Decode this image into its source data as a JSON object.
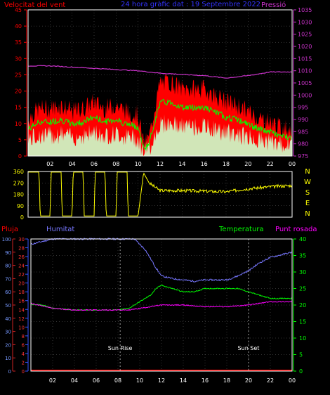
{
  "header": {
    "left_title": "Velocitat del vent",
    "center_title": "24 hora gràfic dat : 19 Septembre 2022",
    "right_title": "Pressió"
  },
  "lower_labels": {
    "rain": "Pluja",
    "humidity": "Humitat",
    "temperature": "Temperatura",
    "dewpoint": "Punt rosada",
    "sunrise": "Sun Rise",
    "sunset": "Sun Set"
  },
  "colors": {
    "gust": "#ff0000",
    "avg_wind": "#00ff00",
    "wind_low": "#ccffcc",
    "pressure": "#cc33cc",
    "direction": "#ffff00",
    "humidity": "#7777ff",
    "temperature": "#00ff00",
    "dewpoint": "#ff00ff",
    "rain": "#ff0000",
    "axis_rain": "#3355ff",
    "axis_hum": "#cc2222",
    "axis_temp": "#00ff00",
    "frame": "#ffffff",
    "grid": "#666666"
  },
  "chart_data": [
    {
      "type": "line",
      "x_ticks": [
        "02",
        "04",
        "06",
        "08",
        "10",
        "12",
        "14",
        "16",
        "18",
        "20",
        "22",
        "00"
      ],
      "y_left_ticks": [
        "0",
        "5",
        "10",
        "15",
        "20",
        "25",
        "30",
        "35",
        "40",
        "45"
      ],
      "y_right_ticks": [
        "975",
        "980",
        "985",
        "990",
        "995",
        "1000",
        "1005",
        "1010",
        "1015",
        "1020",
        "1025",
        "1030",
        "1035"
      ],
      "ylim_left": [
        0,
        45
      ],
      "ylim_right": [
        975,
        1035
      ],
      "series": [
        {
          "name": "Velocitat del vent",
          "x": [
            0,
            1,
            2,
            3,
            4,
            5,
            6,
            7,
            8,
            9,
            10,
            10.5,
            11,
            11.5,
            12,
            13,
            14,
            15,
            16,
            17,
            18,
            19,
            20,
            21,
            22,
            23,
            24
          ],
          "values": [
            11,
            14,
            14,
            15,
            13,
            14,
            16,
            14,
            15,
            13,
            12,
            3,
            5,
            14,
            22,
            22,
            20,
            20,
            20,
            18,
            16,
            15,
            13,
            11,
            10,
            8,
            8
          ]
        },
        {
          "name": "Pressió",
          "x": [
            0,
            2,
            4,
            6,
            8,
            10,
            12,
            14,
            16,
            18,
            20,
            22,
            24
          ],
          "values": [
            1012,
            1012,
            1011.5,
            1011,
            1010.5,
            1010,
            1009,
            1008.5,
            1008,
            1007,
            1008,
            1009.5,
            1009.5
          ]
        }
      ]
    },
    {
      "type": "line",
      "x_ticks": [
        "02",
        "04",
        "06",
        "08",
        "10",
        "12",
        "14",
        "16",
        "18",
        "20",
        "22",
        "00"
      ],
      "y_left_ticks": [
        "0",
        "90",
        "180",
        "270",
        "360"
      ],
      "y_right_labels": [
        "N",
        "W",
        "S",
        "E",
        "N"
      ],
      "ylim": [
        0,
        360
      ],
      "series": [
        {
          "name": "",
          "x": [
            0,
            1,
            1.1,
            2,
            2.1,
            3,
            3.1,
            4,
            4.1,
            5,
            5.1,
            6,
            6.1,
            7,
            7.1,
            8,
            8.1,
            9,
            9.1,
            10,
            10.5,
            11,
            12,
            14,
            16,
            18,
            20,
            22,
            24
          ],
          "values": [
            355,
            355,
            10,
            10,
            355,
            355,
            10,
            10,
            355,
            355,
            10,
            10,
            355,
            355,
            10,
            10,
            355,
            355,
            10,
            10,
            350,
            270,
            210,
            210,
            205,
            200,
            225,
            240,
            250
          ]
        }
      ]
    },
    {
      "type": "line",
      "x_ticks": [
        "02",
        "04",
        "06",
        "08",
        "10",
        "12",
        "14",
        "16",
        "18",
        "20",
        "22",
        "00"
      ],
      "y_hum_ticks": [
        "0",
        "10",
        "20",
        "30",
        "40",
        "50",
        "60",
        "70",
        "80",
        "90",
        "100"
      ],
      "y_rain_ticks": [
        "0",
        "2",
        "4",
        "6",
        "8",
        "10",
        "12",
        "14",
        "16",
        "18",
        "20",
        "22",
        "24",
        "26",
        "28",
        "30"
      ],
      "y_temp_ticks": [
        "0",
        "5",
        "10",
        "15",
        "20",
        "25",
        "30",
        "35",
        "40"
      ],
      "ylim_temp": [
        0,
        40
      ],
      "series": [
        {
          "name": "Humitat",
          "x": [
            0,
            1,
            2,
            4,
            6,
            8,
            9.5,
            10.5,
            11,
            11.5,
            12,
            13,
            14,
            15,
            16,
            18,
            19,
            20,
            21,
            22,
            23,
            24
          ],
          "values": [
            96,
            98,
            100,
            100,
            100,
            100,
            100,
            92,
            85,
            78,
            72,
            70,
            69,
            68,
            69,
            69,
            72,
            76,
            82,
            86,
            88,
            90
          ]
        },
        {
          "name": "Temperatura",
          "x": [
            0,
            1,
            2,
            4,
            6,
            8,
            9,
            10,
            11,
            11.5,
            12,
            13,
            14,
            15,
            16,
            17,
            18,
            19,
            20,
            21,
            22,
            23,
            24
          ],
          "values": [
            20.2,
            20,
            19,
            18.5,
            18.5,
            18.5,
            19,
            21,
            23,
            25,
            26,
            25,
            24,
            24,
            25,
            25,
            25,
            25,
            24,
            23,
            22,
            22,
            22
          ]
        },
        {
          "name": "Punt rosada",
          "x": [
            0,
            2,
            4,
            6,
            8,
            9,
            10,
            11,
            12,
            14,
            16,
            18,
            20,
            22,
            24
          ],
          "values": [
            20.5,
            19,
            18.5,
            18.5,
            18.5,
            18.5,
            19,
            19.5,
            20,
            20,
            19.5,
            19.5,
            20,
            21,
            21
          ]
        },
        {
          "name": "Pluja",
          "x": [
            0,
            24
          ],
          "values": [
            0,
            0
          ]
        }
      ],
      "sunrise_hour": 8.2,
      "sunset_hour": 20.0
    }
  ]
}
